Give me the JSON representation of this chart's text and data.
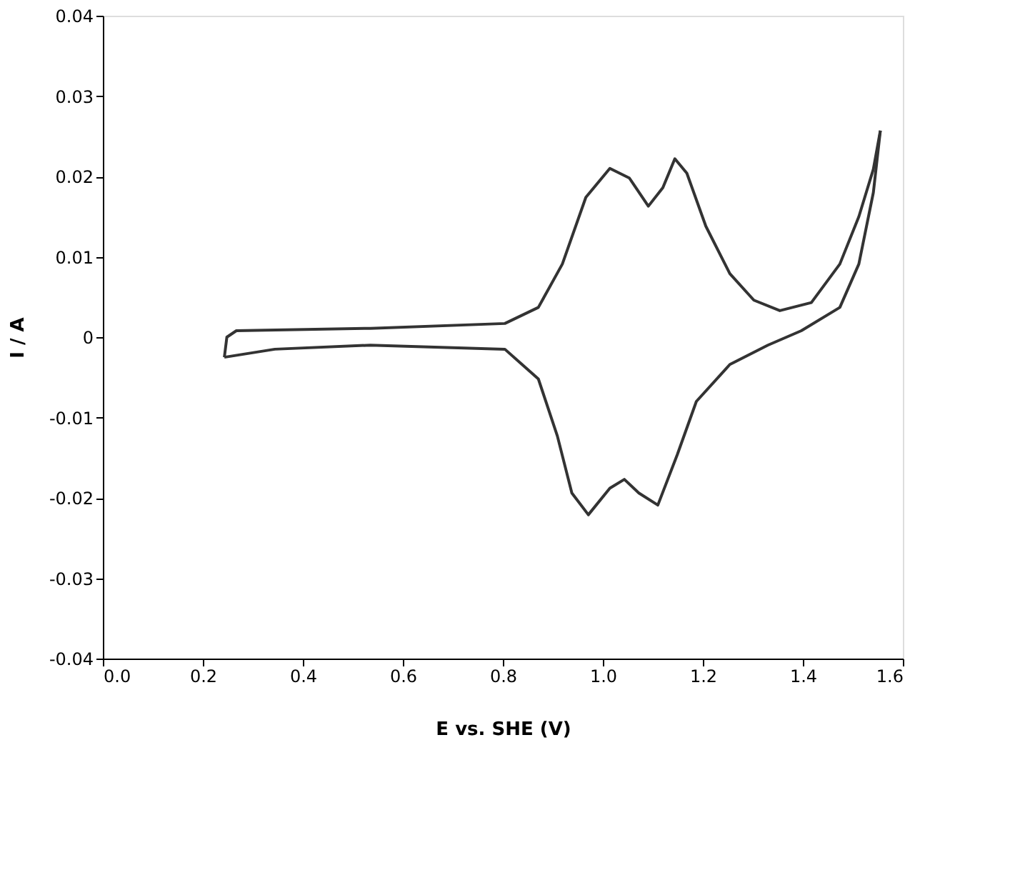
{
  "chart_data": {
    "type": "line",
    "xlabel": "E vs. SHE (V)",
    "ylabel": "I / A",
    "xlim": [
      0.0,
      1.6
    ],
    "xticks": [
      {
        "value": 0,
        "label": "0.0"
      },
      0.2,
      0.4,
      0.6,
      0.8,
      {
        "value": 1,
        "label": "1.0"
      },
      1.2,
      1.4,
      1.6
    ],
    "ylim": [
      -0.04,
      0.04
    ],
    "yticks": [
      -0.04,
      -0.03,
      -0.02,
      -0.01,
      0,
      0.01,
      0.02,
      0.03,
      0.04
    ],
    "grid": false,
    "legend": false,
    "marker": "none",
    "line_style": "solid",
    "series": [
      {
        "color": "#333333",
        "x": [
          0.243,
          0.248,
          0.267,
          0.535,
          0.804,
          0.871,
          0.919,
          0.966,
          1.014,
          1.053,
          1.091,
          1.12,
          1.144,
          1.168,
          1.206,
          1.254,
          1.302,
          1.354,
          1.417,
          1.474,
          1.512,
          1.541,
          1.555
        ],
        "values": [
          -0.0025,
          0.0,
          0.0008,
          0.0011,
          0.0017,
          0.0037,
          0.0091,
          0.0174,
          0.021,
          0.0198,
          0.0163,
          0.0186,
          0.0222,
          0.0204,
          0.0138,
          0.0079,
          0.0046,
          0.0033,
          0.0043,
          0.0091,
          0.015,
          0.0209,
          0.0257
        ]
      },
      {
        "color": "#333333",
        "x": [
          1.555,
          1.541,
          1.512,
          1.474,
          1.397,
          1.33,
          1.254,
          1.187,
          1.149,
          1.11,
          1.072,
          1.043,
          1.014,
          0.971,
          0.938,
          0.909,
          0.871,
          0.804,
          0.535,
          0.344,
          0.243
        ],
        "values": [
          0.0257,
          0.018,
          0.0091,
          0.0037,
          0.0008,
          -0.001,
          -0.0034,
          -0.008,
          -0.0146,
          -0.0209,
          -0.0194,
          -0.0177,
          -0.0188,
          -0.0221,
          -0.0194,
          -0.0123,
          -0.0052,
          -0.0015,
          -0.001,
          -0.0015,
          -0.0025
        ]
      }
    ]
  }
}
